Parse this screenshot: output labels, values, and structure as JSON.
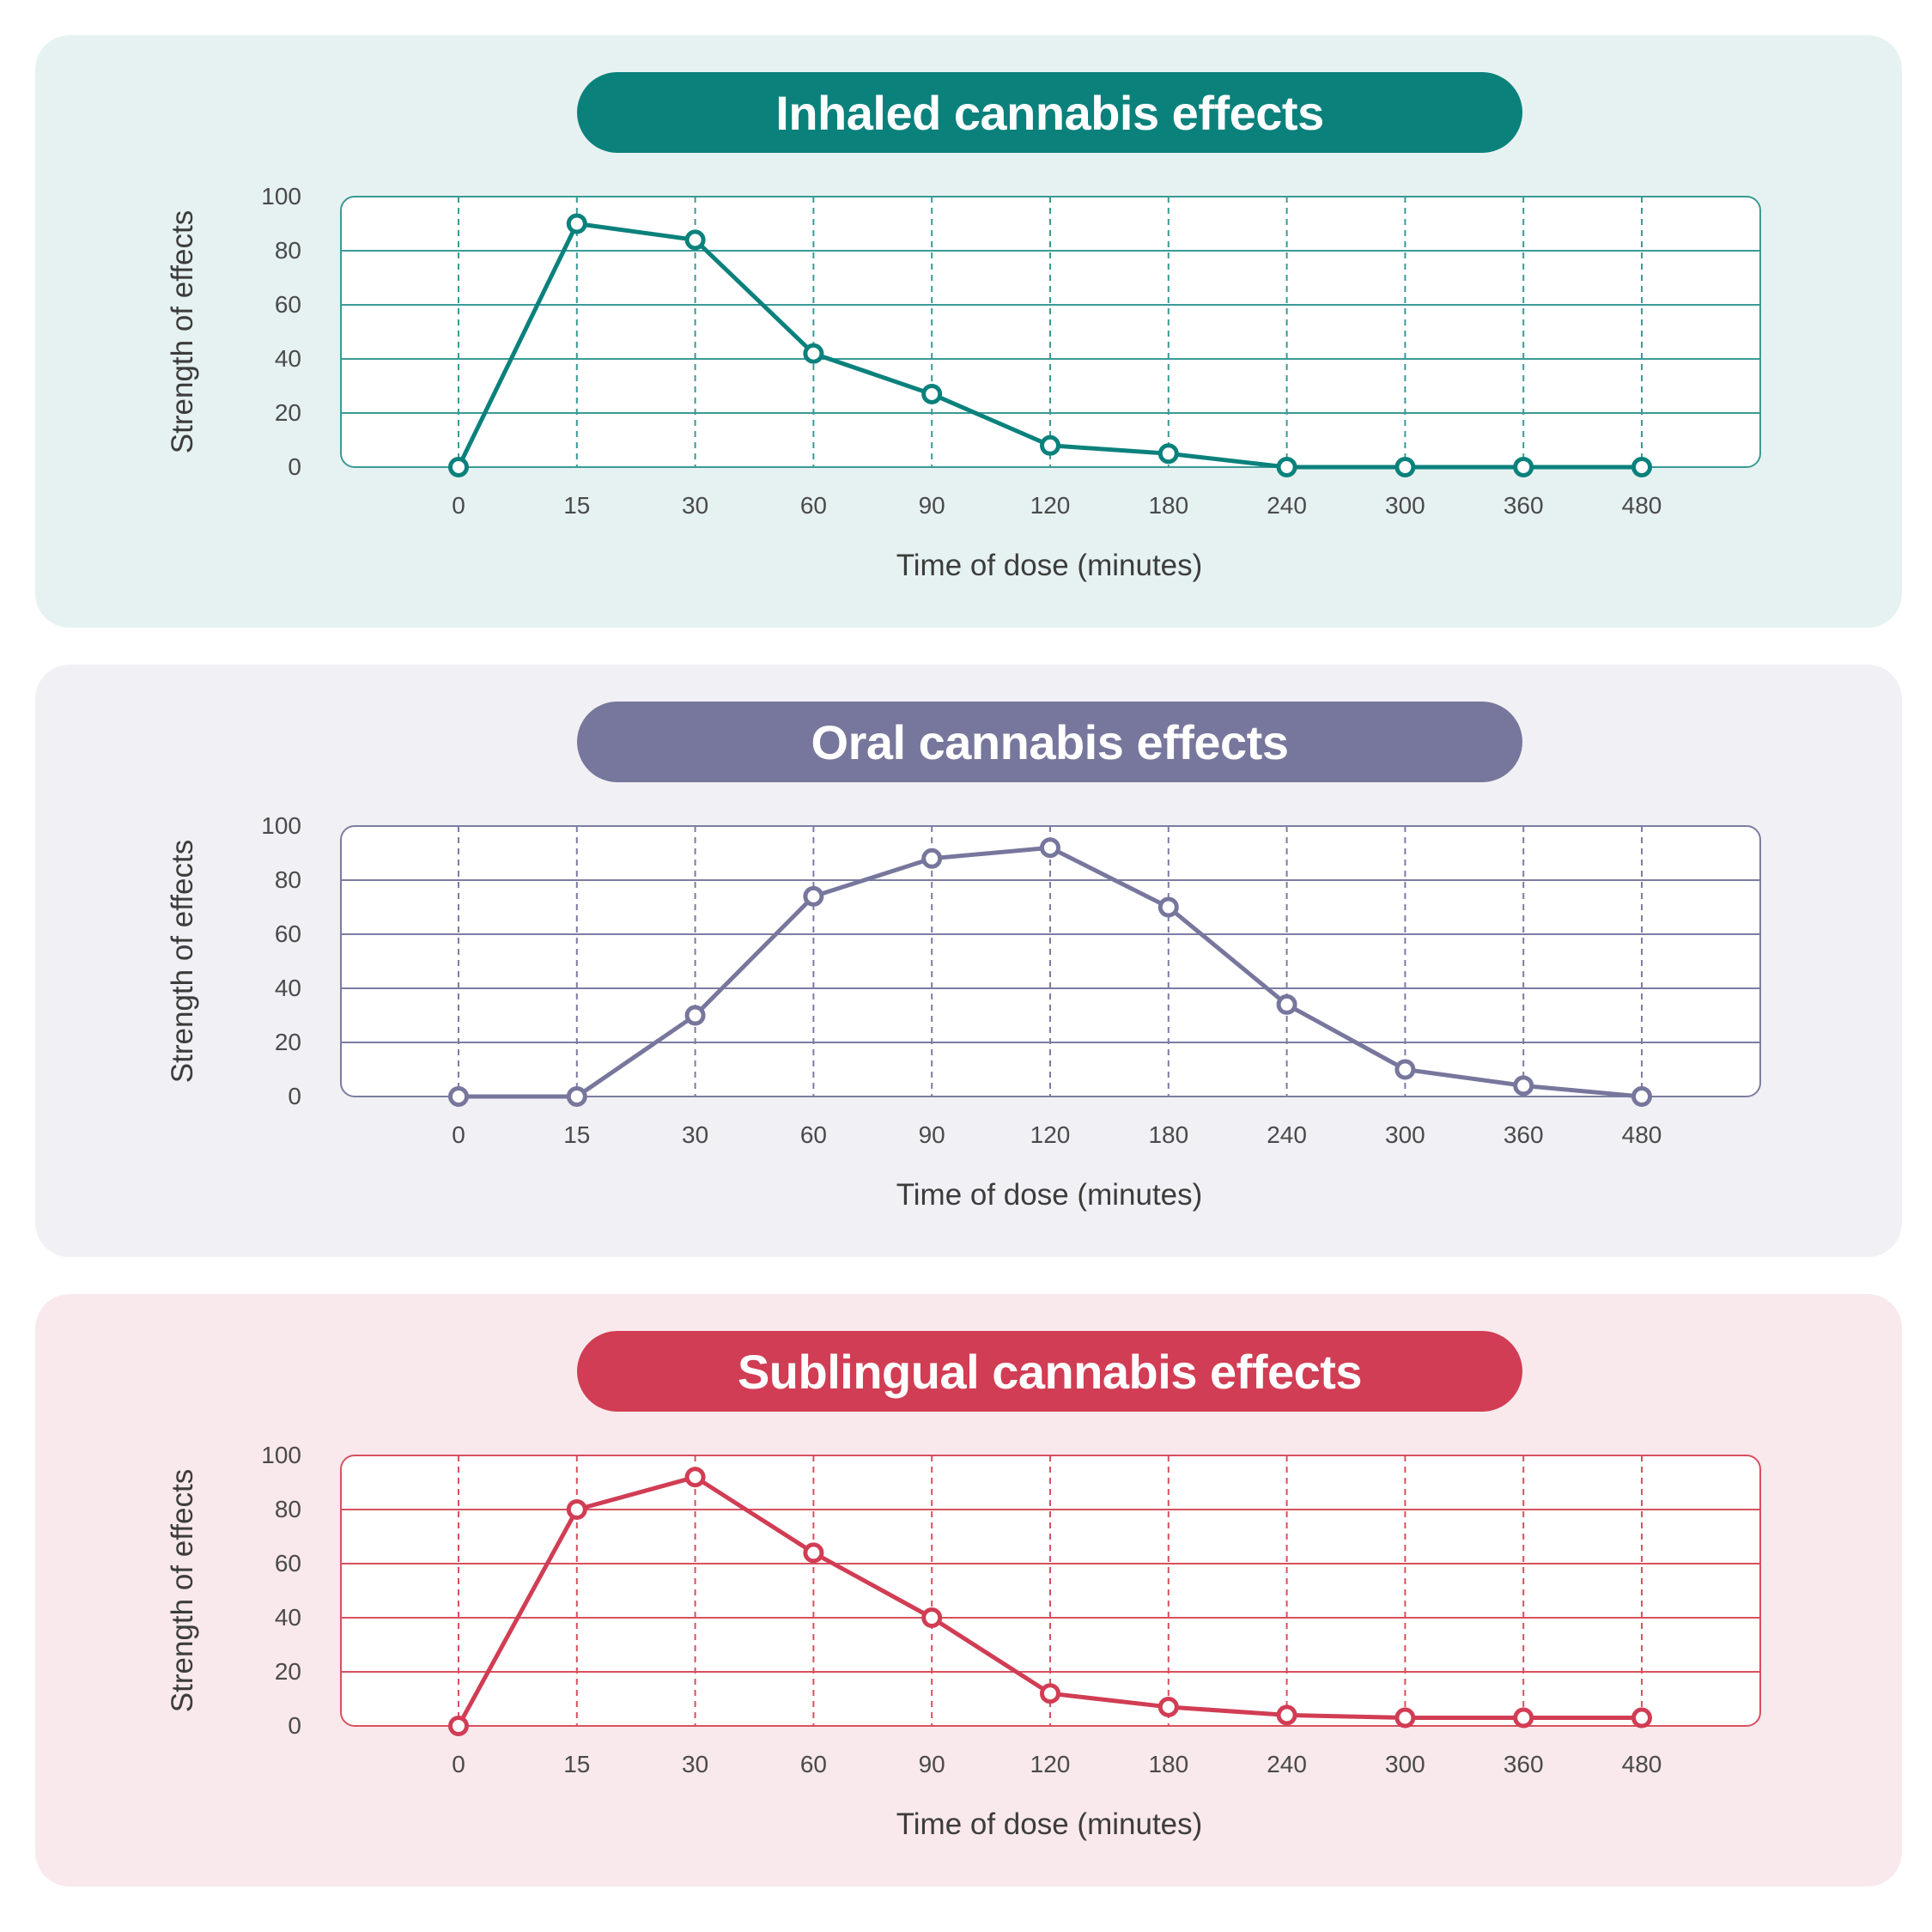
{
  "chart_data": [
    {
      "type": "line",
      "title": "Inhaled cannabis effects",
      "xlabel": "Time of dose (minutes)",
      "ylabel": "Strength of effects",
      "categories": [
        "0",
        "15",
        "30",
        "60",
        "90",
        "120",
        "180",
        "240",
        "300",
        "360",
        "480"
      ],
      "yticks": [
        "0",
        "20",
        "40",
        "60",
        "80",
        "100"
      ],
      "ylim": [
        0,
        100
      ],
      "values": [
        0,
        90,
        84,
        42,
        27,
        8,
        5,
        0,
        0,
        0,
        0
      ],
      "grid": true,
      "colors": {
        "accent": "#0b817c",
        "panel_bg": "#e6f2f1",
        "grid": "#3a9a95",
        "text": "#4a4a4a"
      }
    },
    {
      "type": "line",
      "title": "Oral cannabis effects",
      "xlabel": "Time of dose (minutes)",
      "ylabel": "Strength of effects",
      "categories": [
        "0",
        "15",
        "30",
        "60",
        "90",
        "120",
        "180",
        "240",
        "300",
        "360",
        "480"
      ],
      "yticks": [
        "0",
        "20",
        "40",
        "60",
        "80",
        "100"
      ],
      "ylim": [
        0,
        100
      ],
      "values": [
        0,
        0,
        30,
        74,
        88,
        92,
        70,
        34,
        10,
        4,
        0
      ],
      "grid": true,
      "colors": {
        "accent": "#77779d",
        "panel_bg": "#f1f1f5",
        "grid": "#7c7ca3",
        "text": "#4a4a4a"
      }
    },
    {
      "type": "line",
      "title": "Sublingual cannabis effects",
      "xlabel": "Time of dose (minutes)",
      "ylabel": "Strength of effects",
      "categories": [
        "0",
        "15",
        "30",
        "60",
        "90",
        "120",
        "180",
        "240",
        "300",
        "360",
        "480"
      ],
      "yticks": [
        "0",
        "20",
        "40",
        "60",
        "80",
        "100"
      ],
      "ylim": [
        0,
        100
      ],
      "values": [
        0,
        80,
        92,
        64,
        40,
        12,
        7,
        4,
        3,
        3,
        3
      ],
      "grid": true,
      "colors": {
        "accent": "#d13d54",
        "panel_bg": "#f9e9ec",
        "grid": "#d8505f",
        "text": "#4a4a4a"
      }
    }
  ]
}
